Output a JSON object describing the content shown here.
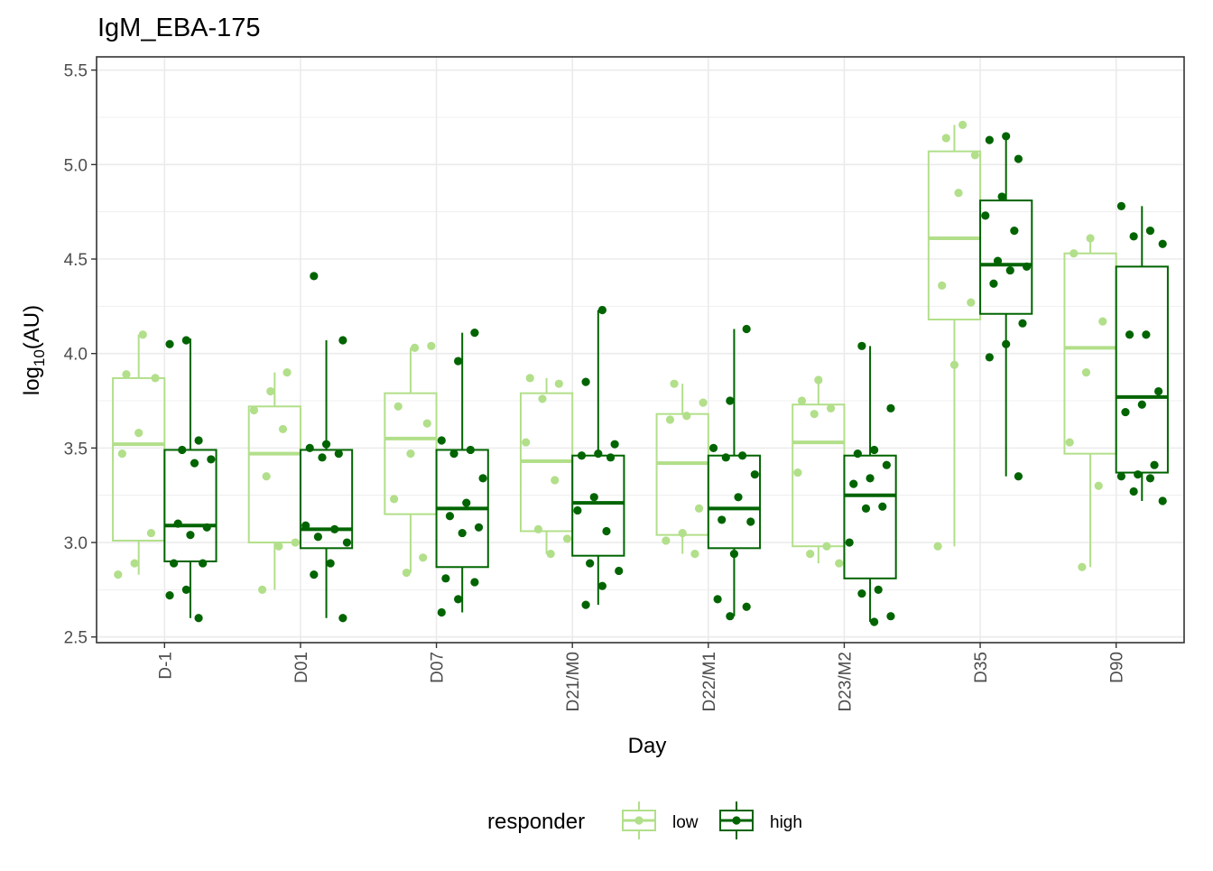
{
  "chart_data": {
    "type": "boxplot",
    "title": "IgM_EBA-175",
    "xlabel": "Day",
    "ylabel_main": "log",
    "ylabel_sub": "10",
    "ylabel_tail": "(AU)",
    "ylim": [
      2.47,
      5.57
    ],
    "yticks": [
      2.5,
      3.0,
      3.5,
      4.0,
      4.5,
      5.0,
      5.5
    ],
    "ytick_labels": [
      "2.5",
      "3.0",
      "3.5",
      "4.0",
      "4.5",
      "5.0",
      "5.5"
    ],
    "categories": [
      "D-1",
      "D01",
      "D07",
      "D21/M0",
      "D22/M1",
      "D23/M2",
      "D35",
      "D90"
    ],
    "grid": true,
    "legend": {
      "title": "responder",
      "position": "bottom"
    },
    "series": [
      {
        "name": "low",
        "color": "#b2df8a",
        "boxes": [
          {
            "min": 2.83,
            "q1": 3.01,
            "median": 3.52,
            "q3": 3.87,
            "max": 4.1
          },
          {
            "min": 2.75,
            "q1": 3.0,
            "median": 3.47,
            "q3": 3.72,
            "max": 3.9
          },
          {
            "min": 2.84,
            "q1": 3.15,
            "median": 3.55,
            "q3": 3.79,
            "max": 4.03
          },
          {
            "min": 2.94,
            "q1": 3.06,
            "median": 3.43,
            "q3": 3.79,
            "max": 3.87
          },
          {
            "min": 2.94,
            "q1": 3.04,
            "median": 3.42,
            "q3": 3.68,
            "max": 3.84
          },
          {
            "min": 2.89,
            "q1": 2.98,
            "median": 3.53,
            "q3": 3.73,
            "max": 3.86
          },
          {
            "min": 2.98,
            "q1": 4.18,
            "median": 4.61,
            "q3": 5.07,
            "max": 5.21
          },
          {
            "min": 2.87,
            "q1": 3.47,
            "median": 4.03,
            "q3": 4.53,
            "max": 4.62
          }
        ],
        "points": [
          [
            2.83,
            2.89,
            3.05,
            3.47,
            3.58,
            3.87,
            3.89,
            4.1
          ],
          [
            2.75,
            2.98,
            3.0,
            3.35,
            3.6,
            3.7,
            3.8,
            3.9
          ],
          [
            2.84,
            2.92,
            3.23,
            3.47,
            3.63,
            3.72,
            4.03,
            4.04
          ],
          [
            2.94,
            3.02,
            3.07,
            3.33,
            3.53,
            3.76,
            3.84,
            3.87
          ],
          [
            2.94,
            3.01,
            3.05,
            3.18,
            3.65,
            3.67,
            3.74,
            3.84
          ],
          [
            2.89,
            2.94,
            2.98,
            3.37,
            3.68,
            3.71,
            3.75,
            3.86
          ],
          [
            2.98,
            3.94,
            4.27,
            4.36,
            4.85,
            5.05,
            5.14,
            5.21
          ],
          [
            2.87,
            3.3,
            3.53,
            3.9,
            4.17,
            4.53,
            4.61
          ]
        ]
      },
      {
        "name": "high",
        "color": "#006400",
        "boxes": [
          {
            "min": 2.6,
            "q1": 2.9,
            "median": 3.09,
            "q3": 3.49,
            "max": 4.08
          },
          {
            "min": 2.6,
            "q1": 2.97,
            "median": 3.07,
            "q3": 3.49,
            "max": 4.07
          },
          {
            "min": 2.63,
            "q1": 2.87,
            "median": 3.18,
            "q3": 3.49,
            "max": 4.11
          },
          {
            "min": 2.67,
            "q1": 2.93,
            "median": 3.21,
            "q3": 3.46,
            "max": 4.23
          },
          {
            "min": 2.61,
            "q1": 2.97,
            "median": 3.18,
            "q3": 3.46,
            "max": 4.13
          },
          {
            "min": 2.58,
            "q1": 2.81,
            "median": 3.25,
            "q3": 3.46,
            "max": 4.04
          },
          {
            "min": 3.35,
            "q1": 4.21,
            "median": 4.47,
            "q3": 4.81,
            "max": 5.15
          },
          {
            "min": 3.22,
            "q1": 3.37,
            "median": 3.77,
            "q3": 4.46,
            "max": 4.78
          }
        ],
        "points": [
          [
            2.6,
            2.72,
            2.75,
            2.89,
            2.89,
            3.04,
            3.08,
            3.1,
            3.42,
            3.44,
            3.49,
            3.54,
            4.05,
            4.07
          ],
          [
            2.6,
            2.83,
            2.89,
            3.0,
            3.03,
            3.07,
            3.09,
            3.45,
            3.47,
            3.5,
            3.52,
            4.07,
            4.41
          ],
          [
            2.63,
            2.7,
            2.79,
            2.81,
            3.05,
            3.08,
            3.14,
            3.21,
            3.34,
            3.47,
            3.49,
            3.54,
            3.96,
            4.11
          ],
          [
            2.67,
            2.77,
            2.85,
            2.89,
            3.06,
            3.17,
            3.24,
            3.45,
            3.46,
            3.47,
            3.52,
            3.85,
            4.23
          ],
          [
            2.61,
            2.66,
            2.7,
            2.94,
            3.11,
            3.12,
            3.24,
            3.36,
            3.45,
            3.46,
            3.5,
            3.75,
            4.13
          ],
          [
            2.58,
            2.61,
            2.73,
            2.75,
            3.0,
            3.18,
            3.19,
            3.31,
            3.34,
            3.41,
            3.47,
            3.49,
            3.71,
            4.04
          ],
          [
            3.35,
            3.98,
            4.05,
            4.16,
            4.37,
            4.44,
            4.46,
            4.49,
            4.65,
            4.73,
            4.83,
            5.03,
            5.13,
            5.15
          ],
          [
            3.22,
            3.27,
            3.34,
            3.35,
            3.36,
            3.41,
            3.69,
            3.73,
            3.8,
            4.1,
            4.1,
            4.58,
            4.62,
            4.65,
            4.78
          ]
        ]
      }
    ]
  }
}
